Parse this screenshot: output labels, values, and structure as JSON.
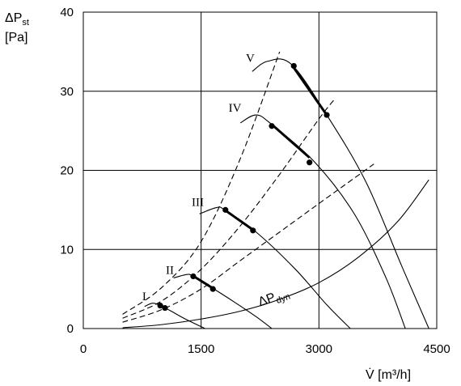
{
  "chart_data": {
    "type": "line",
    "title": "",
    "ylabel_main": "ΔP",
    "ylabel_sub": "st",
    "ylabel_unit": "[Pa]",
    "xlabel_main": "V̇",
    "xlabel_unit": " [m³/h]",
    "xlim": [
      0,
      4500
    ],
    "ylim": [
      0,
      40
    ],
    "xticks": [
      0,
      1500,
      3000,
      4500
    ],
    "xtick_labels": [
      "0",
      "1500",
      "3000",
      "4500"
    ],
    "yticks": [
      0,
      10,
      20,
      30,
      40
    ],
    "ytick_labels": [
      "0",
      "10",
      "20",
      "30",
      "40"
    ],
    "grid": true,
    "fan_curves": [
      {
        "label": "I",
        "label_at": [
          750,
          3.6
        ],
        "x": [
          780,
          880,
          960,
          1100,
          1300,
          1550
        ],
        "y": [
          2.8,
          3.2,
          3.0,
          2.3,
          1.2,
          0.0
        ],
        "bold_from": 980,
        "bold_to": 1040
      },
      {
        "label": "II",
        "label_at": [
          1050,
          6.9
        ],
        "x": [
          1150,
          1300,
          1390,
          1600,
          1900,
          2200,
          2400
        ],
        "y": [
          6.4,
          6.8,
          6.7,
          5.4,
          3.5,
          1.5,
          0.0
        ],
        "bold_from": 1400,
        "bold_to": 1650
      },
      {
        "label": "III",
        "label_at": [
          1380,
          15.5
        ],
        "x": [
          1480,
          1700,
          1800,
          2200,
          2700,
          3100,
          3400
        ],
        "y": [
          14.5,
          15.3,
          15.0,
          12.2,
          7.5,
          3.0,
          0.0
        ],
        "bold_from": 1810,
        "bold_to": 2160
      },
      {
        "label": "IV",
        "label_at": [
          1850,
          27.4
        ],
        "x": [
          2000,
          2200,
          2400,
          2950,
          3450,
          3850,
          4100
        ],
        "y": [
          26.0,
          27.0,
          25.8,
          21.0,
          14.5,
          6.5,
          0.0
        ],
        "bold_from": 2400,
        "bold_to": 2880
      },
      {
        "label": "V",
        "label_at": [
          2070,
          33.7
        ],
        "x": [
          2150,
          2350,
          2650,
          3100,
          3600,
          4050,
          4400
        ],
        "y": [
          32.5,
          33.8,
          33.4,
          27.0,
          18.5,
          8.0,
          0.0
        ],
        "bold_from": 2680,
        "bold_to": 3100
      }
    ],
    "system_curves": [
      {
        "x": [
          500,
          1000,
          1500,
          2000,
          2500
        ],
        "y": [
          1.8,
          5.2,
          11.0,
          21.5,
          35.0
        ]
      },
      {
        "x": [
          500,
          1000,
          1500,
          2000,
          2500,
          3000,
          3200
        ],
        "y": [
          1.3,
          3.5,
          7.5,
          13.0,
          19.5,
          26.5,
          29.0
        ]
      },
      {
        "x": [
          500,
          1000,
          1500,
          2000,
          2500,
          3000,
          3700
        ],
        "y": [
          0.8,
          2.4,
          5.0,
          8.6,
          12.2,
          15.8,
          20.8
        ]
      }
    ],
    "dynamic_curve": {
      "label_main": "ΔP",
      "label_sub": "dyn",
      "label_at": [
        2250,
        2.8
      ],
      "x": [
        500,
        1000,
        1500,
        2000,
        2500,
        3000,
        3500,
        4000,
        4400
      ],
      "y": [
        0.1,
        0.5,
        1.2,
        2.2,
        3.7,
        5.8,
        9.0,
        13.5,
        18.8
      ]
    },
    "operating_points": [
      {
        "x": 980,
        "y": 2.9
      },
      {
        "x": 1040,
        "y": 2.6
      },
      {
        "x": 1400,
        "y": 6.6
      },
      {
        "x": 1650,
        "y": 5.0
      },
      {
        "x": 1810,
        "y": 15.0
      },
      {
        "x": 2160,
        "y": 12.4
      },
      {
        "x": 2400,
        "y": 25.6
      },
      {
        "x": 2880,
        "y": 21.0
      },
      {
        "x": 2680,
        "y": 33.2
      },
      {
        "x": 3100,
        "y": 27.0
      }
    ]
  }
}
